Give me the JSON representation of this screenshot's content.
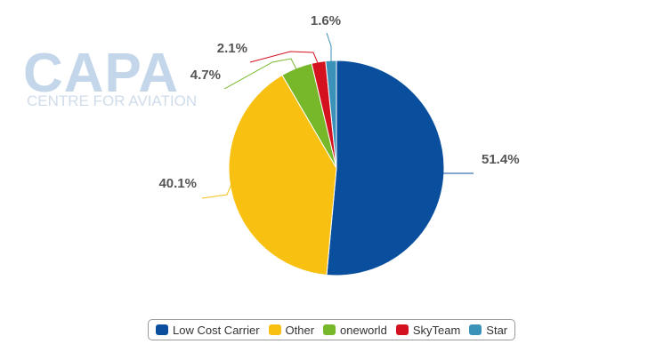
{
  "watermark": {
    "brand": "CAPA",
    "tagline": "CENTRE FOR AVIATION"
  },
  "chart_data": {
    "type": "pie",
    "legend_placement": "bottom",
    "series": [
      {
        "name": "Low Cost Carrier",
        "value": 51.4,
        "label": "51.4%",
        "color": "#0a4f9e"
      },
      {
        "name": "Other",
        "value": 40.1,
        "label": "40.1%",
        "color": "#f8c011"
      },
      {
        "name": "oneworld",
        "value": 4.7,
        "label": "4.7%",
        "color": "#76b82a"
      },
      {
        "name": "SkyTeam",
        "value": 2.1,
        "label": "2.1%",
        "color": "#d4111f"
      },
      {
        "name": "Star",
        "value": 1.6,
        "label": "1.6%",
        "color": "#3b92b8"
      }
    ]
  }
}
